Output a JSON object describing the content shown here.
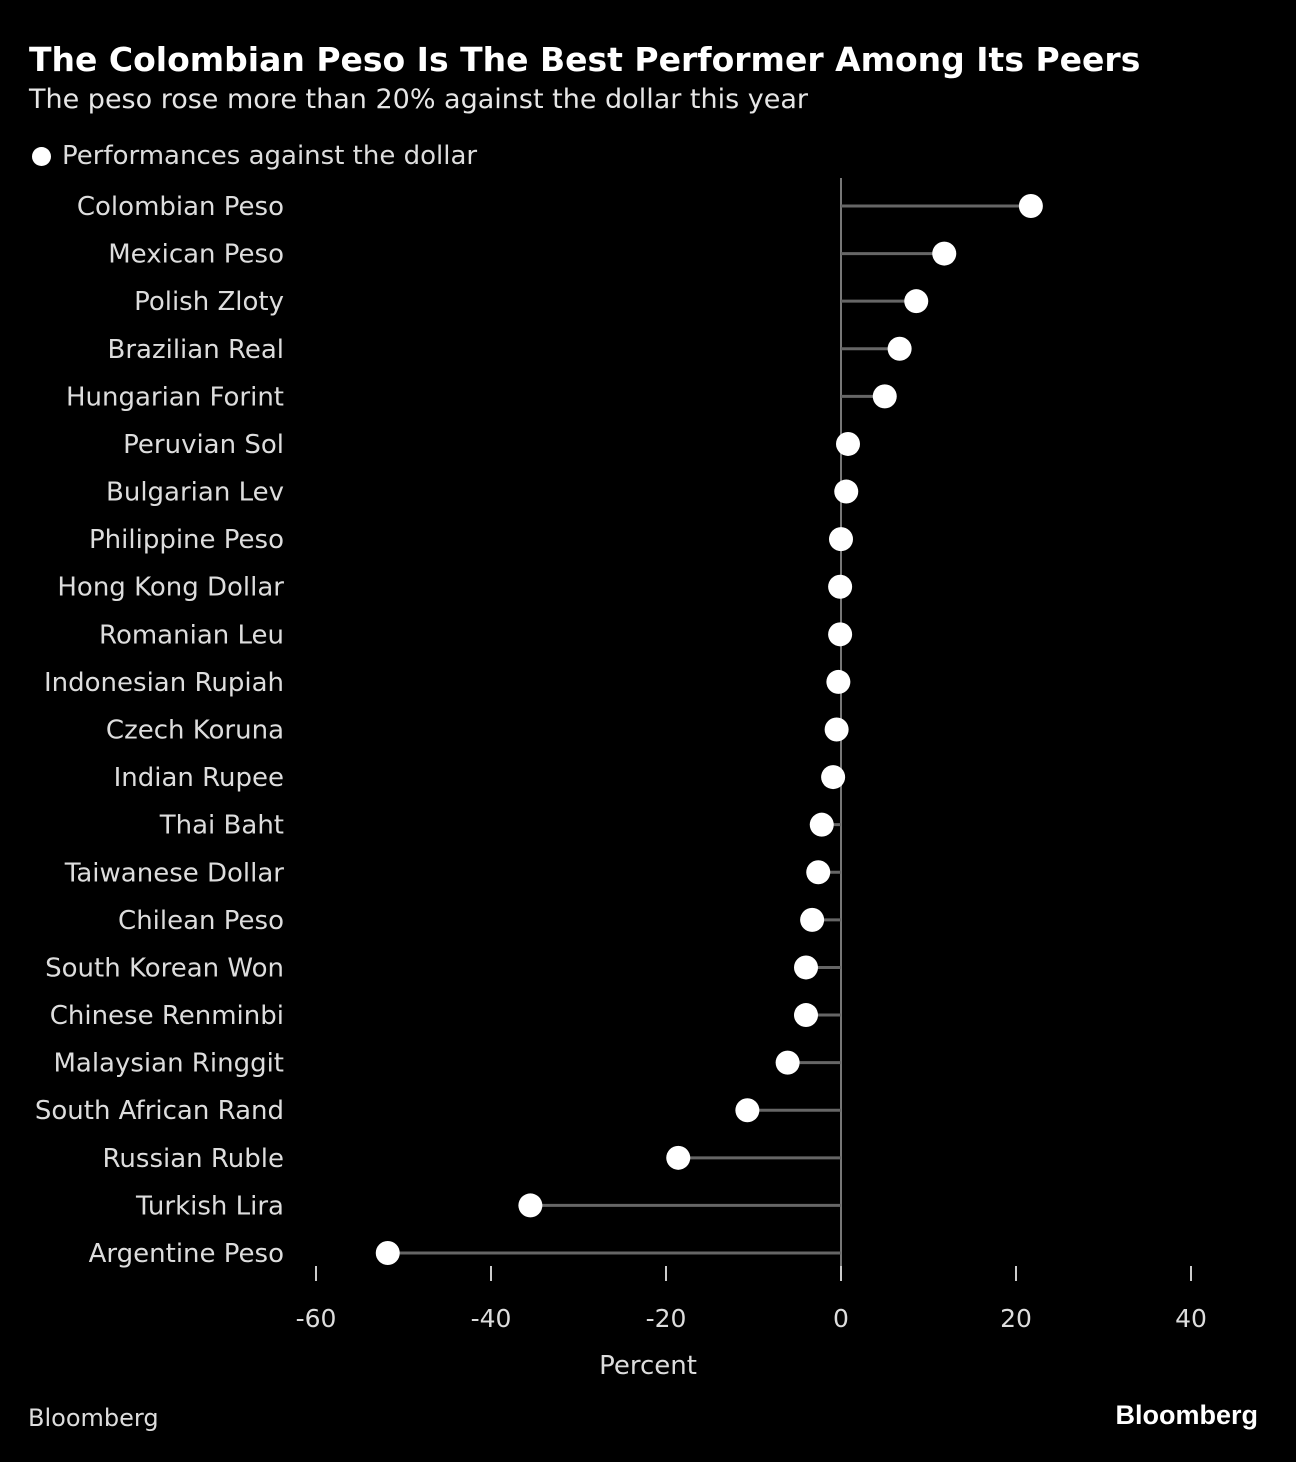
{
  "chart_data": {
    "type": "lollipop",
    "title": "The Colombian Peso Is The Best Performer Among Its Peers",
    "subtitle": "The peso rose more than 20% against the dollar this year",
    "legend": "Performances against the dollar",
    "xlabel": "Percent",
    "xlim": [
      -60,
      40
    ],
    "xticks": [
      -60,
      -40,
      -20,
      0,
      20,
      40
    ],
    "categories": [
      "Colombian Peso",
      "Mexican Peso",
      "Polish Zloty",
      "Brazilian Real",
      "Hungarian Forint",
      "Peruvian Sol",
      "Bulgarian Lev",
      "Philippine Peso",
      "Hong Kong Dollar",
      "Romanian Leu",
      "Indonesian Rupiah",
      "Czech Koruna",
      "Indian Rupee",
      "Thai Baht",
      "Taiwanese Dollar",
      "Chilean Peso",
      "South Korean Won",
      "Chinese Renminbi",
      "Malaysian Ringgit",
      "South African Rand",
      "Russian Ruble",
      "Turkish Lira",
      "Argentine Peso"
    ],
    "values": [
      21.7,
      11.8,
      8.6,
      6.7,
      5.0,
      0.8,
      0.6,
      0.0,
      -0.1,
      -0.1,
      -0.3,
      -0.5,
      -0.9,
      -2.2,
      -2.6,
      -3.3,
      -4.0,
      -4.0,
      -6.1,
      -10.7,
      -18.6,
      -35.5,
      -51.8
    ],
    "colors": {
      "background": "#000000",
      "dot": "#ffffff",
      "stem": "#666666"
    }
  },
  "source": "Bloomberg",
  "logo": "Bloomberg"
}
